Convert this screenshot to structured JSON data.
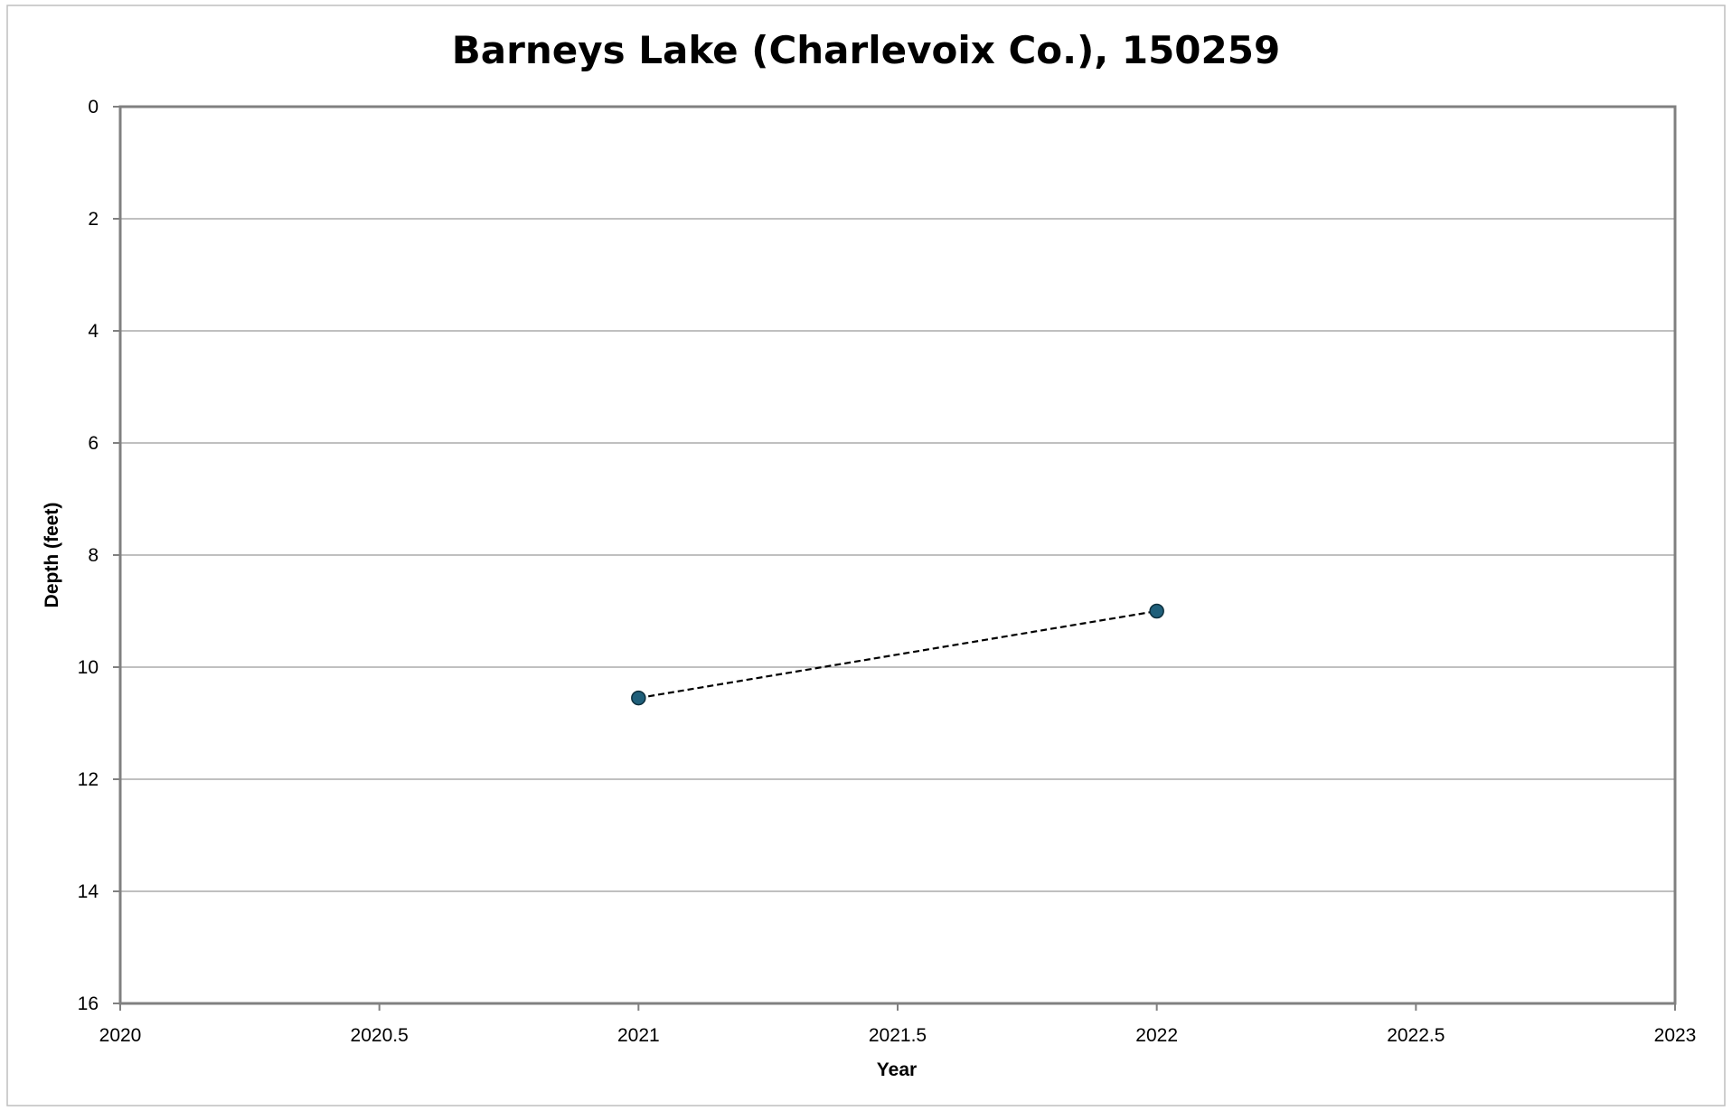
{
  "chart_data": {
    "type": "scatter",
    "title": "Barneys Lake (Charlevoix Co.), 150259",
    "xlabel": "Year",
    "ylabel": "Depth (feet)",
    "xlim": [
      2020,
      2023
    ],
    "ylim": [
      0,
      16
    ],
    "y_inverted": true,
    "x_ticks": [
      "2020",
      "2020.5",
      "2021",
      "2021.5",
      "2022",
      "2022.5",
      "2023"
    ],
    "y_ticks": [
      "0",
      "2",
      "4",
      "6",
      "8",
      "10",
      "12",
      "14",
      "16"
    ],
    "grid": "horizontal",
    "legend": "none",
    "series": [
      {
        "x": [
          2021,
          2022
        ],
        "y": [
          10.55,
          9.0
        ],
        "marker_color": "#1f5f7a",
        "line_style": "dashed",
        "line_color": "#000000"
      }
    ]
  },
  "colors": {
    "background": "#ffffff",
    "frame": "#808080",
    "gridline": "#c0c0c0",
    "axis": "#808080",
    "marker": "#1f5f7a",
    "marker_edge": "#0d2f3d"
  }
}
